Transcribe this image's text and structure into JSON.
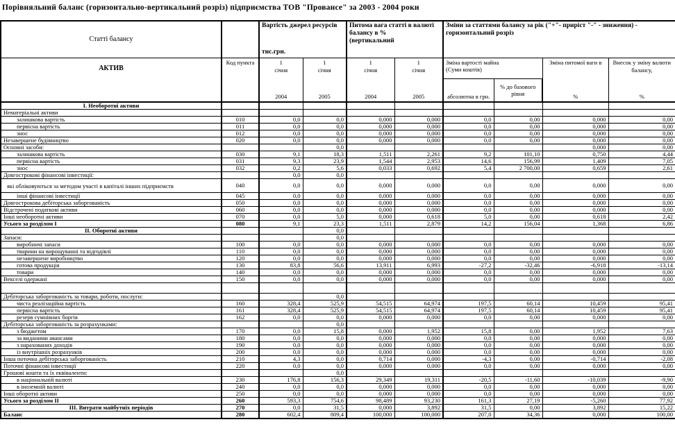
{
  "title": "Порівняльний баланс (горизонтально-вертикальний розріз)  підприємства ТОВ \"Провансе\" за 2003 - 2004 роки",
  "header": {
    "articles": "Статті балансу",
    "aktiv": "АКТИВ",
    "code": "Код пункта",
    "value_group": {
      "title": "Вартість джерел ресурсів",
      "unit": "тис.грн."
    },
    "weight_group": {
      "title": "Питома вага статті в валюті балансу в %",
      "note": "(вертикальний"
    },
    "changes_group": {
      "title": "Зміни за статтями балансу за рік (\"+\"- приріст \"-\" - зниження) - горизонтальний розріз"
    },
    "dates": [
      {
        "day": "1",
        "month": "січня",
        "year": "2004"
      },
      {
        "day": "1",
        "month": "січня",
        "year": "2005"
      },
      {
        "day": "1",
        "month": "січня",
        "year": "2004"
      },
      {
        "day": "1",
        "month": "січня",
        "year": "2005"
      }
    ],
    "change_value": {
      "title": "Зміна вартості майна",
      "subtitle": "(Суми коштів)",
      "abs": "абсолютна в грн.",
      "rel": "% до базового рівня"
    },
    "weight_change": {
      "title": "Зміна питомої ваги в",
      "unit": "%"
    },
    "contribution": {
      "title": "Внесок у зміну валюти балансу,",
      "unit": "%"
    }
  },
  "table": {
    "rows": [
      {
        "label": "I. Необоротні активи",
        "code": "",
        "indent": 0,
        "style": "section",
        "values": [
          "",
          "",
          "",
          "",
          "",
          "",
          "",
          ""
        ]
      },
      {
        "label": "Нематеріальні активи",
        "code": "",
        "indent": 0,
        "style": "",
        "values": [
          "",
          "",
          "",
          "",
          "",
          "",
          "",
          ""
        ]
      },
      {
        "label": "залишкова вартість",
        "code": "010",
        "indent": 1,
        "style": "",
        "values": [
          "0,0",
          "0,0",
          "0,000",
          "0,000",
          "0,0",
          "0,00",
          "0,000",
          "0,00"
        ]
      },
      {
        "label": "первісна вартість",
        "code": "011",
        "indent": 1,
        "style": "",
        "values": [
          "0,0",
          "0,0",
          "0,000",
          "0,000",
          "0,0",
          "0,00",
          "0,000",
          "0,00"
        ]
      },
      {
        "label": "знос",
        "code": "012",
        "indent": 1,
        "style": "",
        "values": [
          "0,0",
          "0,0",
          "0,000",
          "0,000",
          "0,0",
          "0,00",
          "0,000",
          "0,00"
        ]
      },
      {
        "label": "Незавершене будівництво",
        "code": "020",
        "indent": 0,
        "style": "",
        "values": [
          "0,0",
          "0,0",
          "0,000",
          "0,000",
          "0,0",
          "0,00",
          "0,000",
          "0,00"
        ]
      },
      {
        "label": "Основні засоби:",
        "code": "",
        "indent": 0,
        "style": "",
        "values": [
          "",
          "0,0",
          "",
          "",
          "",
          "",
          "0,000",
          "0,00"
        ]
      },
      {
        "label": "залишкова вартість",
        "code": "030",
        "indent": 1,
        "style": "",
        "values": [
          "9,1",
          "18,3",
          "1,511",
          "2,261",
          "9,2",
          "101,10",
          "0,750",
          "4,44"
        ]
      },
      {
        "label": "первісна вартість",
        "code": "031",
        "indent": 1,
        "style": "",
        "values": [
          "9,3",
          "23,9",
          "1,544",
          "2,953",
          "14,6",
          "156,99",
          "1,409",
          "7,05"
        ]
      },
      {
        "label": "знос",
        "code": "032",
        "indent": 1,
        "style": "",
        "values": [
          "0,2",
          "5,6",
          "0,033",
          "0,692",
          "5,4",
          "2 700,00",
          "0,659",
          "2,61"
        ]
      },
      {
        "label": "Довгострокові фінансові інвестиції:",
        "code": "",
        "indent": 0,
        "style": "",
        "values": [
          "0,0",
          "0,0",
          "",
          "",
          "",
          "",
          "",
          ""
        ]
      },
      {
        "label": "які обліковуються за методом участі в капіталі інших підприємств",
        "code": "040",
        "indent": 0,
        "style": "wrap",
        "values": [
          "0,0",
          "0,0",
          "0,000",
          "0,000",
          "0,0",
          "0,00",
          "0,000",
          "0,00"
        ]
      },
      {
        "label": "інші фінансові інвестиції",
        "code": "045",
        "indent": 1,
        "style": "",
        "values": [
          "0,0",
          "0,0",
          "0,000",
          "0,000",
          "0,0",
          "0,00",
          "0,000",
          "0,00"
        ]
      },
      {
        "label": "Довгострокова дебіторська заборгованість",
        "code": "050",
        "indent": 0,
        "style": "",
        "values": [
          "0,0",
          "0,0",
          "0,000",
          "0,000",
          "0,0",
          "0,00",
          "0,000",
          "0,00"
        ]
      },
      {
        "label": "Відстрочені податкові активи",
        "code": "060",
        "indent": 0,
        "style": "",
        "values": [
          "0,0",
          "0,0",
          "0,000",
          "0,000",
          "0,0",
          "0,00",
          "0,000",
          "0,00"
        ]
      },
      {
        "label": "Інші необоротні активи",
        "code": "070",
        "indent": 0,
        "style": "",
        "values": [
          "0,0",
          "5,0",
          "0,000",
          "0,618",
          "5,0",
          "0,00",
          "0,618",
          "2,42"
        ]
      },
      {
        "label": "Усього за розділом I",
        "code": "080",
        "indent": 0,
        "style": "total",
        "values": [
          "9,1",
          "23,3",
          "1,511",
          "2,879",
          "14,2",
          "156,04",
          "1,368",
          "6,86"
        ]
      },
      {
        "label": "II. Оборотні активи",
        "code": "",
        "indent": 0,
        "style": "section",
        "values": [
          "",
          "0,0",
          "",
          "",
          "",
          "",
          "",
          ""
        ]
      },
      {
        "label": "Запаси:",
        "code": "",
        "indent": 0,
        "style": "",
        "values": [
          "",
          "0,0",
          "",
          "",
          "",
          "",
          "",
          ""
        ]
      },
      {
        "label": "виробничі запаси",
        "code": "100",
        "indent": 1,
        "style": "",
        "values": [
          "0,0",
          "0,0",
          "0,000",
          "0,000",
          "0,0",
          "0,00",
          "0,000",
          "0,00"
        ]
      },
      {
        "label": "тварини на вирощуванні та відгодівлі",
        "code": "110",
        "indent": 1,
        "style": "",
        "values": [
          "0,0",
          "0,0",
          "0,000",
          "0,000",
          "0,0",
          "0,00",
          "0,000",
          "0,00"
        ]
      },
      {
        "label": "незавершене виробництво",
        "code": "120",
        "indent": 1,
        "style": "",
        "values": [
          "0,0",
          "0,0",
          "0,000",
          "0,000",
          "0,0",
          "0,00",
          "0,000",
          "0,00"
        ]
      },
      {
        "label": "готова продукція",
        "code": "130",
        "indent": 1,
        "style": "",
        "values": [
          "83,8",
          "56,6",
          "13,911",
          "6,993",
          "-27,2",
          "-32,46",
          "-6,918",
          "-13,14"
        ]
      },
      {
        "label": "товари",
        "code": "140",
        "indent": 1,
        "style": "",
        "values": [
          "0,0",
          "0,0",
          "0,000",
          "0,000",
          "0,0",
          "0,00",
          "0,000",
          "0,00"
        ]
      },
      {
        "label": "Векселі одержані",
        "code": "150",
        "indent": 0,
        "style": "",
        "values": [
          "0,0",
          "0,0",
          "0,000",
          "0,000",
          "0,0",
          "0,00",
          "0,000",
          "0,00"
        ]
      },
      {
        "label": "",
        "code": "",
        "indent": 0,
        "style": "blank",
        "values": [
          "",
          "",
          "",
          "",
          "",
          "",
          "",
          ""
        ]
      },
      {
        "label": "Дебіторська заборгованість за товари, роботи, послуги:",
        "code": "",
        "indent": 0,
        "style": "",
        "values": [
          "",
          "0,0",
          "",
          "",
          "",
          "",
          "",
          ""
        ]
      },
      {
        "label": "чиста реалізаційна вартість",
        "code": "160",
        "indent": 1,
        "style": "",
        "values": [
          "328,4",
          "525,9",
          "54,515",
          "64,974",
          "197,5",
          "60,14",
          "10,459",
          "95,41"
        ]
      },
      {
        "label": "первісна вартість",
        "code": "161",
        "indent": 1,
        "style": "",
        "values": [
          "328,4",
          "525,9",
          "54,515",
          "64,974",
          "197,5",
          "60,14",
          "10,459",
          "95,41"
        ]
      },
      {
        "label": "резерв сумнівних боргів",
        "code": "162",
        "indent": 1,
        "style": "",
        "values": [
          "0,0",
          "0,0",
          "0,000",
          "0,000",
          "0,0",
          "0,00",
          "0,000",
          "0,00"
        ]
      },
      {
        "label": "Дебіторська заборгованість за розрахунками:",
        "code": "",
        "indent": 0,
        "style": "",
        "values": [
          "",
          "0,0",
          "",
          "",
          "",
          "",
          "",
          ""
        ]
      },
      {
        "label": "з бюджетом",
        "code": "170",
        "indent": 1,
        "style": "",
        "values": [
          "0,0",
          "15,8",
          "0,000",
          "1,952",
          "15,8",
          "0,00",
          "1,952",
          "7,63"
        ]
      },
      {
        "label": "за виданими авансами",
        "code": "180",
        "indent": 1,
        "style": "",
        "values": [
          "0,0",
          "0,0",
          "0,000",
          "0,000",
          "0,0",
          "0,00",
          "0,000",
          "0,00"
        ]
      },
      {
        "label": "з нарахованих доходів",
        "code": "190",
        "indent": 1,
        "style": "",
        "values": [
          "0,0",
          "0,0",
          "0,000",
          "0,000",
          "0,0",
          "0,00",
          "0,000",
          "0,00"
        ]
      },
      {
        "label": "із внутрішніх розрахунків",
        "code": "200",
        "indent": 1,
        "style": "",
        "values": [
          "0,0",
          "0,0",
          "0,000",
          "0,000",
          "0,0",
          "0,00",
          "0,000",
          "0,00"
        ]
      },
      {
        "label": "Інша поточна дебіторська заборгованість",
        "code": "210",
        "indent": 0,
        "style": "",
        "values": [
          "4,3",
          "0,0",
          "0,714",
          "0,000",
          "-4,3",
          "0,00",
          "-0,714",
          "-2,08"
        ]
      },
      {
        "label": "Поточні фінансові інвестиції",
        "code": "220",
        "indent": 0,
        "style": "",
        "values": [
          "0,0",
          "0,0",
          "0,000",
          "0,000",
          "0,0",
          "0,00",
          "0,000",
          "0,00"
        ]
      },
      {
        "label": "Грошові кошти та їх еквіваленти:",
        "code": "",
        "indent": 0,
        "style": "",
        "values": [
          "",
          "0,0",
          "",
          "",
          "",
          "",
          "",
          ""
        ]
      },
      {
        "label": "в національній валюті",
        "code": "230",
        "indent": 1,
        "style": "",
        "values": [
          "176,8",
          "156,3",
          "29,349",
          "19,311",
          "-20,5",
          "-11,60",
          "-10,039",
          "-9,90"
        ]
      },
      {
        "label": "в іноземній валюті",
        "code": "240",
        "indent": 1,
        "style": "",
        "values": [
          "0,0",
          "0,0",
          "0,000",
          "0,000",
          "0,0",
          "0,00",
          "0,000",
          "0,00"
        ]
      },
      {
        "label": "Інші оборотні активи",
        "code": "250",
        "indent": 0,
        "style": "",
        "values": [
          "0,0",
          "0,0",
          "0,000",
          "0,000",
          "0,0",
          "0,00",
          "0,000",
          "0,00"
        ]
      },
      {
        "label": "Усього за розділом II",
        "code": "260",
        "indent": 0,
        "style": "total",
        "values": [
          "593,3",
          "754,6",
          "98,489",
          "93,230",
          "161,3",
          "27,19",
          "-5,260",
          "77,92"
        ]
      },
      {
        "label": "III. Витрати майбутніх періодів",
        "code": "270",
        "indent": 0,
        "style": "section",
        "values": [
          "0,0",
          "31,5",
          "0,000",
          "3,892",
          "31,5",
          "0,00",
          "3,892",
          "15,22"
        ]
      },
      {
        "label": "Баланс",
        "code": "280",
        "indent": 0,
        "style": "total",
        "values": [
          "602,4",
          "809,4",
          "100,000",
          "100,000",
          "207,0",
          "34,36",
          "0,000",
          "100,00"
        ]
      }
    ]
  }
}
